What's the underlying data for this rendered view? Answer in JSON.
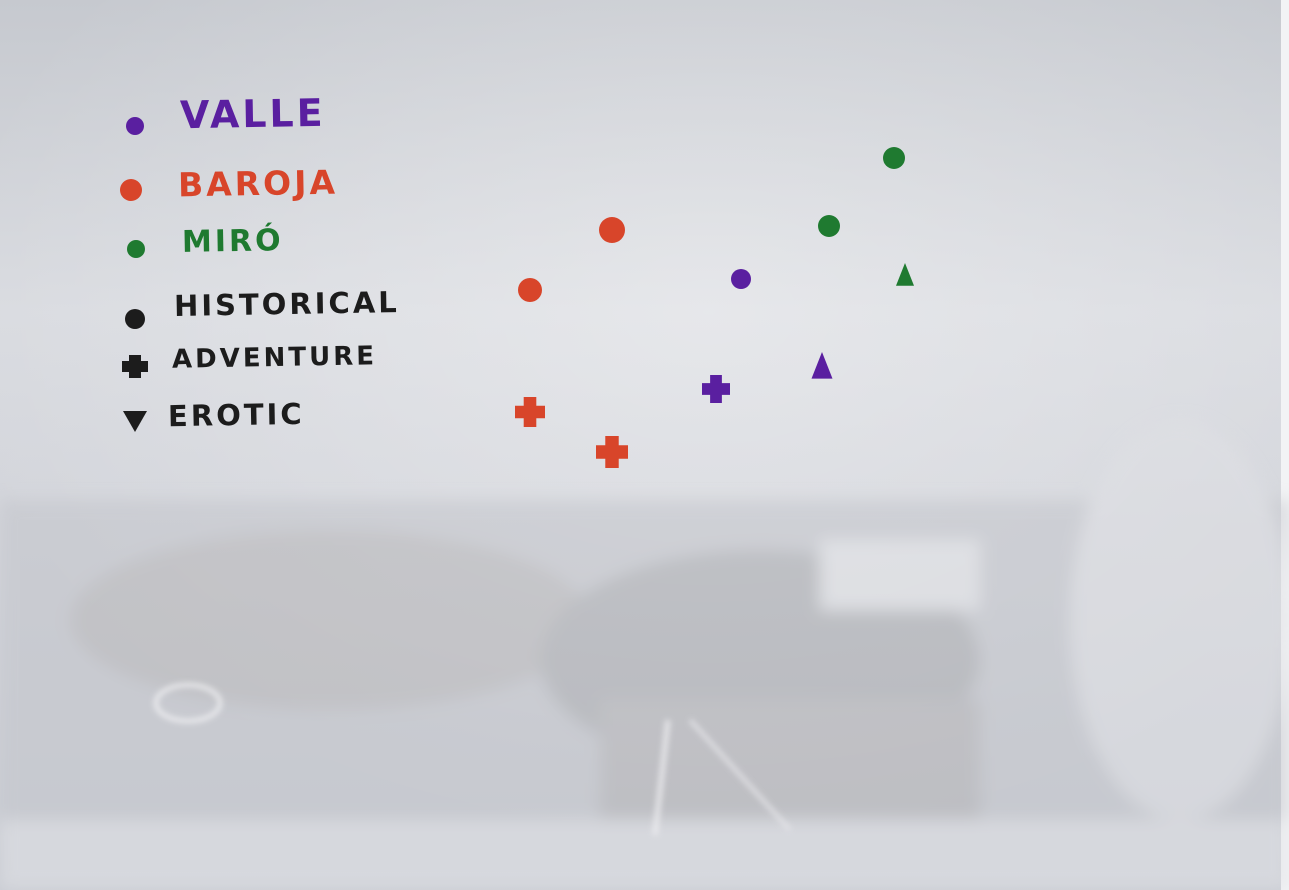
{
  "whiteboard": {
    "legend_colors": [
      {
        "label": "VALLE",
        "color": "#5a1fa0"
      },
      {
        "label": "BAROJA",
        "color": "#d8452a"
      },
      {
        "label": "MIRÓ",
        "color": "#1f7a30"
      }
    ],
    "legend_shapes": [
      {
        "label": "HISTORICAL",
        "shape": "circle"
      },
      {
        "label": "ADVENTURE",
        "shape": "cross"
      },
      {
        "label": "EROTIC",
        "shape": "triangle"
      }
    ],
    "ink_black": "#1c1c1c"
  },
  "markers": [
    {
      "author": "MIRÓ",
      "genre": "HISTORICAL",
      "color": "#1f7a30"
    },
    {
      "author": "MIRÓ",
      "genre": "HISTORICAL",
      "color": "#1f7a30"
    },
    {
      "author": "MIRÓ",
      "genre": "EROTIC",
      "color": "#1f7a30"
    },
    {
      "author": "BAROJA",
      "genre": "HISTORICAL",
      "color": "#d8452a"
    },
    {
      "author": "BAROJA",
      "genre": "HISTORICAL",
      "color": "#d8452a"
    },
    {
      "author": "VALLE",
      "genre": "HISTORICAL",
      "color": "#5a1fa0"
    },
    {
      "author": "VALLE",
      "genre": "EROTIC",
      "color": "#5a1fa0"
    },
    {
      "author": "VALLE",
      "genre": "ADVENTURE",
      "color": "#5a1fa0"
    },
    {
      "author": "BAROJA",
      "genre": "ADVENTURE",
      "color": "#d8452a"
    },
    {
      "author": "BAROJA",
      "genre": "ADVENTURE",
      "color": "#d8452a"
    }
  ]
}
